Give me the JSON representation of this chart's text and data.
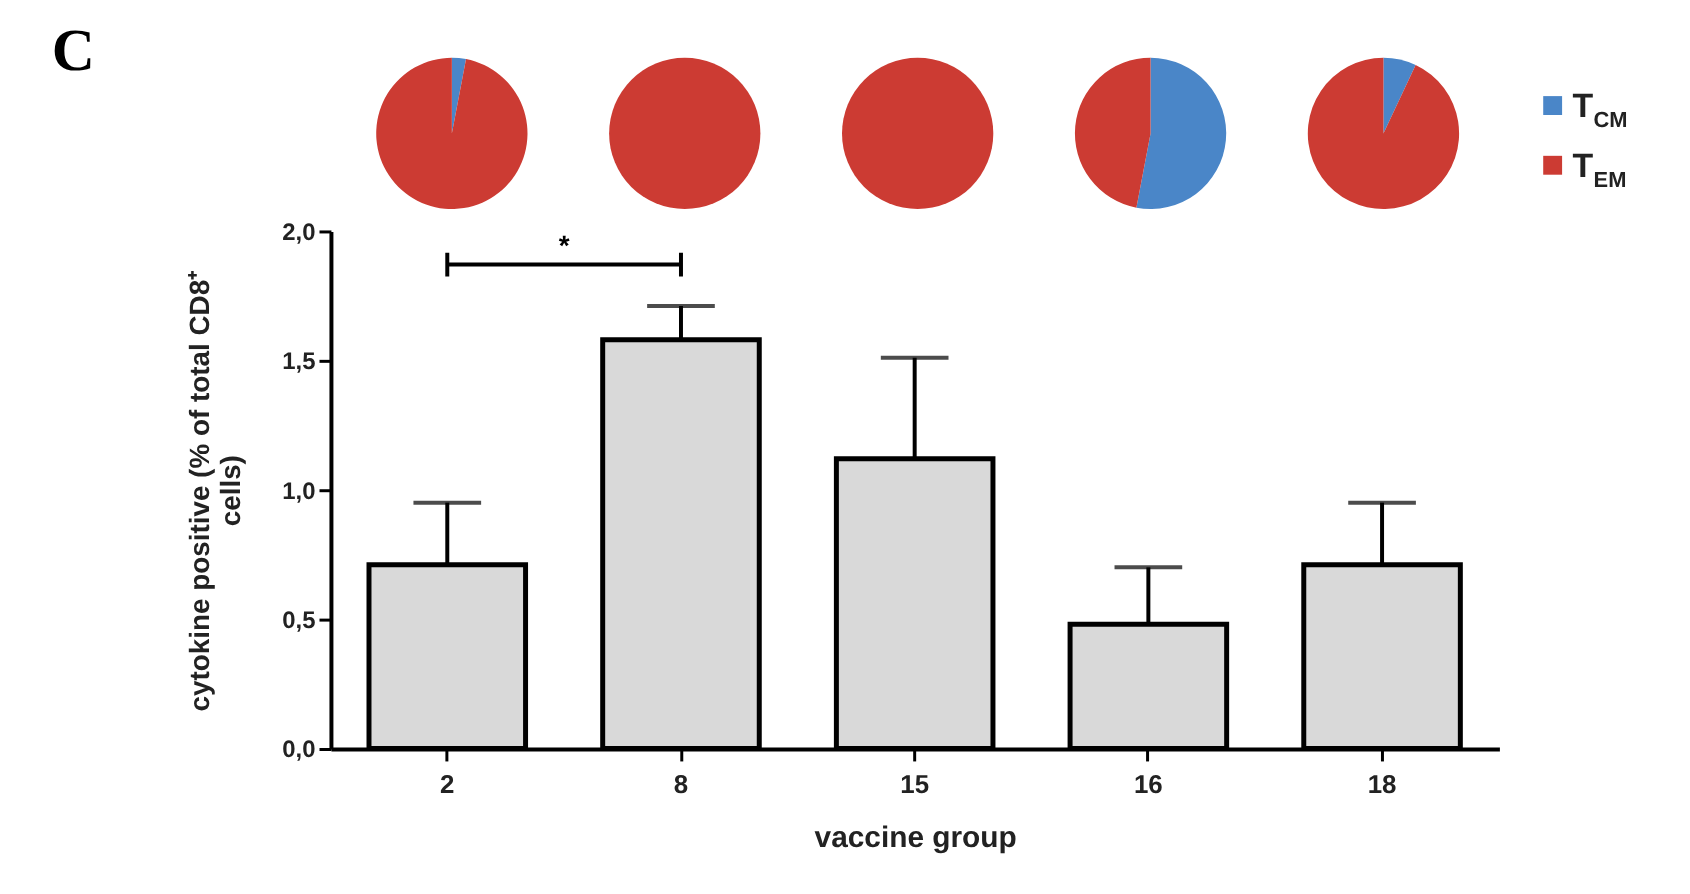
{
  "chart_data": [
    {
      "type": "pie",
      "categories": [
        "T$_{CM}$",
        "T$_{EM}$"
      ],
      "values": [
        3,
        97
      ],
      "colors": [
        "#4a86c8",
        "#cc3b33"
      ],
      "legend": "right"
    },
    {
      "type": "pie",
      "categories": [
        null,
        null
      ],
      "values": [
        0,
        100
      ],
      "colors": [
        "#4a86c8",
        "#cc3b33"
      ]
    },
    {
      "type": "pie",
      "categories": [
        null,
        null
      ],
      "values": [
        0,
        100
      ],
      "colors": [
        "#4a86c8",
        "#cc3b33"
      ]
    },
    {
      "type": "pie",
      "categories": [
        null,
        null
      ],
      "values": [
        53,
        47
      ],
      "colors": [
        "#4a86c8",
        "#cc3b33"
      ]
    },
    {
      "type": "pie",
      "categories": [
        null,
        null
      ],
      "values": [
        7,
        93
      ],
      "colors": [
        "#4a86c8",
        "#cc3b33"
      ]
    },
    {
      "type": "bar",
      "categories": [
        "2",
        "8",
        "15",
        "16",
        "18"
      ],
      "values": [
        0.71,
        1.58,
        1.12,
        0.48,
        0.71
      ],
      "errors": [
        [
          0.71,
          0.95
        ],
        [
          1.58,
          1.71
        ],
        [
          1.12,
          1.51
        ],
        [
          0.48,
          0.7
        ],
        [
          0.71,
          0.95
        ]
      ],
      "color": "#d9d9d9",
      "xlabel": "vaccine group",
      "ylabel": "cytokine positive (%  of total CD8⁺ cells)",
      "ylim": [
        0,
        2
      ],
      "yticks": [
        {
          "value": 0,
          "label": "0,0"
        },
        {
          "value": 0.5,
          "label": "0,5"
        },
        {
          "value": 1,
          "label": "1,0"
        },
        {
          "value": 1.5,
          "label": "1,5"
        },
        {
          "value": 2,
          "label": "2,0"
        }
      ],
      "grid": false,
      "annotations": [
        "C",
        "*"
      ]
    }
  ]
}
